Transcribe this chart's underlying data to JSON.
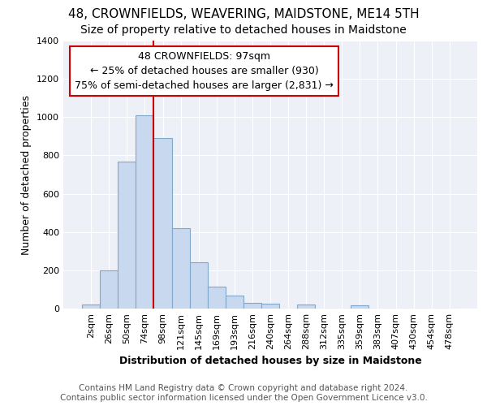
{
  "title": "48, CROWNFIELDS, WEAVERING, MAIDSTONE, ME14 5TH",
  "subtitle": "Size of property relative to detached houses in Maidstone",
  "xlabel": "Distribution of detached houses by size in Maidstone",
  "ylabel": "Number of detached properties",
  "categories": [
    "2sqm",
    "26sqm",
    "50sqm",
    "74sqm",
    "98sqm",
    "121sqm",
    "145sqm",
    "169sqm",
    "193sqm",
    "216sqm",
    "240sqm",
    "264sqm",
    "288sqm",
    "312sqm",
    "335sqm",
    "359sqm",
    "383sqm",
    "407sqm",
    "430sqm",
    "454sqm",
    "478sqm"
  ],
  "values": [
    20,
    200,
    770,
    1010,
    890,
    420,
    240,
    115,
    70,
    30,
    25,
    0,
    20,
    0,
    0,
    15,
    0,
    0,
    0,
    0,
    0
  ],
  "bar_color": "#c8d8ee",
  "bar_edgecolor": "#7fa8cc",
  "bg_color": "#ffffff",
  "plot_bg_color": "#eef0f8",
  "vline_color": "#cc0000",
  "vline_x_idx": 4,
  "annotation_text": "48 CROWNFIELDS: 97sqm\n← 25% of detached houses are smaller (930)\n75% of semi-detached houses are larger (2,831) →",
  "annotation_box_facecolor": "#ffffff",
  "annotation_box_edgecolor": "#cc0000",
  "ylim": [
    0,
    1400
  ],
  "yticks": [
    0,
    200,
    400,
    600,
    800,
    1000,
    1200,
    1400
  ],
  "footer_line1": "Contains HM Land Registry data © Crown copyright and database right 2024.",
  "footer_line2": "Contains public sector information licensed under the Open Government Licence v3.0.",
  "title_fontsize": 11,
  "subtitle_fontsize": 10,
  "xlabel_fontsize": 9,
  "ylabel_fontsize": 9,
  "tick_fontsize": 8,
  "footer_fontsize": 7.5,
  "annot_fontsize": 9
}
